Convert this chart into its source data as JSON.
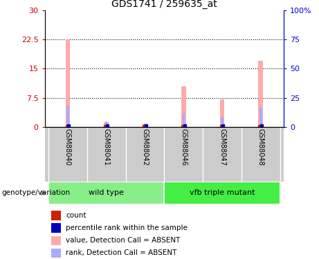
{
  "title": "GDS1741 / 259635_at",
  "samples": [
    "GSM88040",
    "GSM88041",
    "GSM88042",
    "GSM88046",
    "GSM88047",
    "GSM88048"
  ],
  "pink_bar_values": [
    22.5,
    1.2,
    0.85,
    10.5,
    7.0,
    17.0
  ],
  "blue_bar_values": [
    5.5,
    1.3,
    0.85,
    3.5,
    2.5,
    5.0
  ],
  "ylim_left": [
    0,
    30
  ],
  "ylim_right": [
    0,
    100
  ],
  "yticks_left": [
    0,
    7.5,
    15,
    22.5,
    30
  ],
  "yticks_right": [
    0,
    25,
    50,
    75,
    100
  ],
  "ytick_labels_left": [
    "0",
    "7.5",
    "15",
    "22.5",
    "30"
  ],
  "ytick_labels_right": [
    "0",
    "25",
    "50",
    "75",
    "100%"
  ],
  "left_axis_color": "#cc0000",
  "right_axis_color": "#0000cc",
  "pink_color": "#ffaaaa",
  "blue_bar_color": "#aaaaff",
  "red_marker_color": "#cc2200",
  "blue_marker_color": "#0000bb",
  "group_ranges": [
    [
      -0.5,
      2.5
    ],
    [
      2.5,
      5.5
    ]
  ],
  "group_names": [
    "wild type",
    "vfb triple mutant"
  ],
  "group_colors": [
    "#88ee88",
    "#44ee44"
  ],
  "legend_items": [
    {
      "label": "count",
      "color": "#cc2200"
    },
    {
      "label": "percentile rank within the sample",
      "color": "#0000bb"
    },
    {
      "label": "value, Detection Call = ABSENT",
      "color": "#ffaaaa"
    },
    {
      "label": "rank, Detection Call = ABSENT",
      "color": "#aaaaff"
    }
  ],
  "sample_bg_color": "#cccccc",
  "pink_bar_width": 0.12,
  "blue_bar_width": 0.06
}
